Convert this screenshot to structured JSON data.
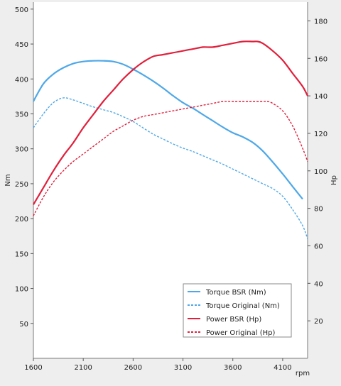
{
  "chart_data": {
    "type": "line",
    "xlabel": "rpm",
    "ylabel": "Nm",
    "ylabel_right": "Hp",
    "xlim": [
      1600,
      4350
    ],
    "ylim": [
      0,
      510
    ],
    "ylim_right": [
      0,
      190
    ],
    "x_ticks": [
      1600,
      2100,
      2600,
      3100,
      3600,
      4100
    ],
    "y_ticks": [
      50,
      100,
      150,
      200,
      250,
      300,
      350,
      400,
      450,
      500
    ],
    "y_ticks_right": [
      20,
      40,
      60,
      80,
      100,
      120,
      140,
      160,
      180
    ],
    "grid": false,
    "legend_position": "bottom-right",
    "colors": {
      "torque": "#4ea8e8",
      "power": "#e0203c"
    },
    "series": [
      {
        "name": "Torque BSR (Nm)",
        "axis": "left",
        "style": "solid",
        "x": [
          1600,
          1700,
          1800,
          1900,
          2000,
          2100,
          2200,
          2300,
          2400,
          2500,
          2600,
          2700,
          2800,
          2900,
          3000,
          3100,
          3200,
          3300,
          3400,
          3500,
          3600,
          3700,
          3800,
          3900,
          4000,
          4100,
          4200,
          4300
        ],
        "values": [
          368,
          393,
          407,
          416,
          422,
          425,
          426,
          426,
          425,
          421,
          414,
          406,
          397,
          387,
          376,
          366,
          358,
          349,
          340,
          331,
          323,
          317,
          309,
          297,
          281,
          264,
          246,
          228
        ]
      },
      {
        "name": "Torque Original (Nm)",
        "axis": "left",
        "style": "dashed",
        "x": [
          1600,
          1700,
          1800,
          1900,
          2000,
          2100,
          2200,
          2300,
          2400,
          2500,
          2600,
          2700,
          2800,
          2900,
          3000,
          3100,
          3200,
          3300,
          3400,
          3500,
          3600,
          3700,
          3800,
          3900,
          4000,
          4100,
          4200,
          4300,
          4350
        ],
        "values": [
          330,
          350,
          366,
          373,
          370,
          365,
          360,
          356,
          352,
          346,
          339,
          330,
          321,
          314,
          307,
          301,
          296,
          290,
          284,
          278,
          271,
          264,
          257,
          250,
          243,
          232,
          213,
          190,
          171
        ]
      },
      {
        "name": "Power BSR (Hp)",
        "axis": "right",
        "style": "solid",
        "x": [
          1600,
          1700,
          1800,
          1900,
          2000,
          2100,
          2200,
          2300,
          2400,
          2500,
          2600,
          2700,
          2800,
          2900,
          3000,
          3100,
          3200,
          3300,
          3400,
          3500,
          3600,
          3700,
          3800,
          3850,
          3900,
          4000,
          4100,
          4200,
          4300,
          4350
        ],
        "values": [
          82,
          91,
          100,
          108,
          115,
          123,
          130,
          137,
          143,
          149,
          154,
          158,
          161,
          162,
          163,
          164,
          165,
          166,
          166,
          167,
          168,
          169,
          169,
          169,
          168,
          164,
          159,
          152,
          145,
          140
        ]
      },
      {
        "name": "Power Original (Hp)",
        "axis": "right",
        "style": "dashed",
        "x": [
          1600,
          1700,
          1800,
          1900,
          2000,
          2100,
          2200,
          2300,
          2400,
          2500,
          2600,
          2700,
          2800,
          2900,
          3000,
          3100,
          3200,
          3300,
          3400,
          3500,
          3600,
          3700,
          3800,
          3900,
          3950,
          4000,
          4100,
          4200,
          4300,
          4350
        ],
        "values": [
          76,
          86,
          94,
          100,
          105,
          109,
          113,
          117,
          121,
          124,
          127,
          129,
          130,
          131,
          132,
          133,
          134,
          135,
          136,
          137,
          137,
          137,
          137,
          137,
          137,
          136,
          132,
          124,
          112,
          105
        ]
      }
    ]
  }
}
